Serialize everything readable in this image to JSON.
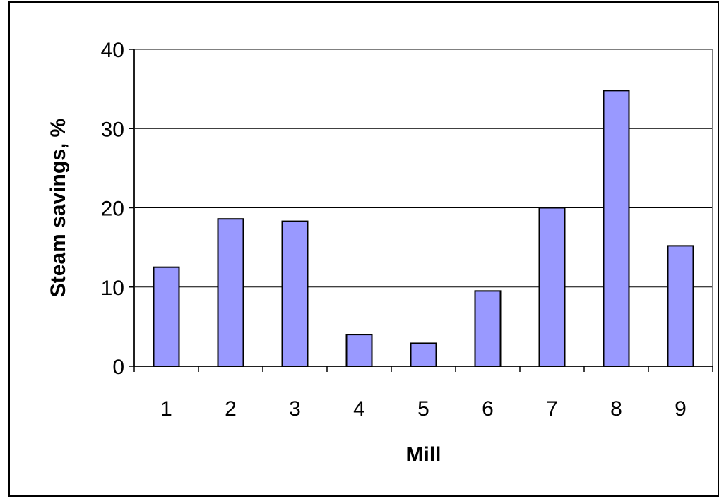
{
  "chart_data": {
    "type": "bar",
    "title": "",
    "xlabel": "Mill",
    "ylabel": "Steam savings, %",
    "categories": [
      "1",
      "2",
      "3",
      "4",
      "5",
      "6",
      "7",
      "8",
      "9"
    ],
    "values": [
      12.5,
      18.6,
      18.3,
      4.0,
      2.9,
      9.5,
      20.0,
      34.8,
      15.2
    ],
    "ylim": [
      0,
      40
    ],
    "yticks": [
      0,
      10,
      20,
      30,
      40
    ],
    "grid": true,
    "legend": "none",
    "bar_color": "#9999ff",
    "bar_outline": "#000000",
    "grid_color": "#000000"
  }
}
